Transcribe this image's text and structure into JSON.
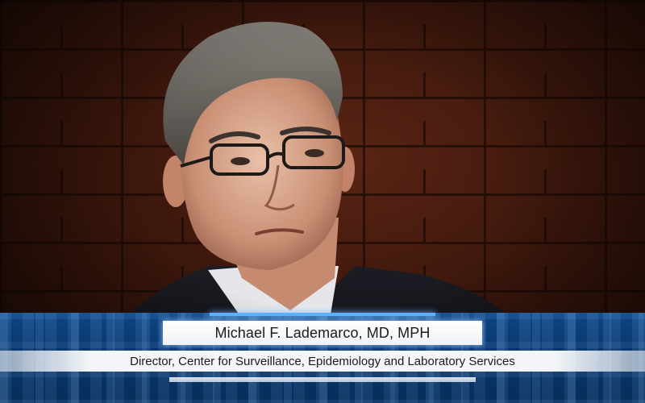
{
  "lower_third": {
    "name": "Michael F. Lademarco, MD, MPH",
    "title": "Director, Center for Surveillance, Epidemiology and Laboratory Services"
  },
  "colors": {
    "brick_wall": "#4a1c0f",
    "lower_third_blue": "#0a3a74",
    "bar_white": "#f3f5f8",
    "text": "#1b1b1b"
  }
}
